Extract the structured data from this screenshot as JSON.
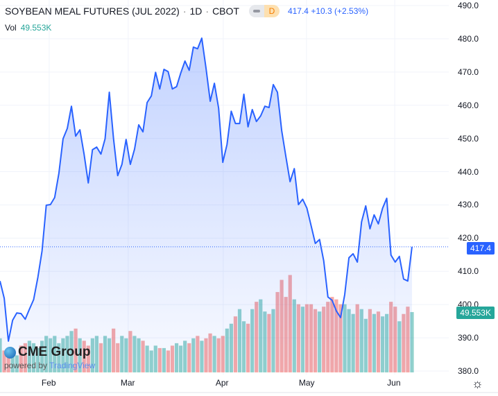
{
  "header": {
    "title": "SOYBEAN MEAL FUTURES (JUL 2022)",
    "interval": "1D",
    "exchange": "CBOT",
    "separator": "·",
    "badge_label": "D",
    "last": "417.4",
    "change": "+10.3",
    "change_pct": "(+2.53%)"
  },
  "volume": {
    "label": "Vol",
    "value": "49.553K"
  },
  "logo": {
    "brand": "CME Group",
    "powered_by": "powered by",
    "provider": "TradingView"
  },
  "colors": {
    "line": "#2962ff",
    "up": "#26a69a",
    "down": "#ef5350"
  },
  "chart_data": {
    "type": "line",
    "title": "SOYBEAN MEAL FUTURES (JUL 2022) · 1D · CBOT",
    "ylim": [
      380,
      490
    ],
    "yticks": [
      "490.0",
      "480.0",
      "470.0",
      "460.0",
      "450.0",
      "440.0",
      "430.0",
      "420.0",
      "410.0",
      "400.0",
      "390.0",
      "380.0"
    ],
    "ytick_values": [
      490,
      480,
      470,
      460,
      450,
      440,
      430,
      420,
      410,
      400,
      390,
      380
    ],
    "xticks": [
      {
        "label": "Feb",
        "index": 11.7
      },
      {
        "label": "Mar",
        "index": 30.5
      },
      {
        "label": "Apr",
        "index": 53.1
      },
      {
        "label": "May",
        "index": 72.9
      },
      {
        "label": "Jun",
        "index": 93.9
      }
    ],
    "last_price_label": "417.4",
    "last_volume_label": "49.553K",
    "prices": [
      407.1,
      401.9,
      389,
      395.3,
      397.5,
      397.3,
      395.6,
      398.6,
      401.5,
      408.2,
      416.1,
      429.9,
      430.1,
      432.2,
      439.5,
      449.9,
      453,
      459.7,
      450.7,
      452.6,
      445.3,
      436.6,
      446.6,
      447.4,
      445.3,
      449.9,
      463.9,
      449.9,
      438.8,
      442.2,
      449.7,
      442.2,
      446.8,
      454.1,
      452,
      460.8,
      462.8,
      469.9,
      464.9,
      470.8,
      470.1,
      464.9,
      465.6,
      469.7,
      473.3,
      470.5,
      477.5,
      477,
      480.2,
      471.2,
      461.2,
      466.6,
      459.1,
      442.8,
      448.2,
      458.2,
      454.5,
      454.5,
      463.3,
      453.5,
      458.7,
      455.1,
      456.8,
      459.7,
      459.3,
      466.2,
      463.9,
      452.4,
      444.5,
      437,
      440.9,
      430.1,
      431.7,
      429,
      423.8,
      418.4,
      419.6,
      413.2,
      402.3,
      401.3,
      398.1,
      396.1,
      403,
      414.1,
      415.3,
      412.8,
      424.9,
      429.7,
      422.8,
      427,
      424.3,
      429,
      432,
      414.9,
      412.8,
      414.5,
      407.7,
      407.1,
      417.4
    ],
    "volumes_k": [
      28,
      18,
      15,
      14,
      14,
      22,
      24,
      26,
      24,
      20,
      26,
      30,
      28,
      30,
      24,
      28,
      30,
      34,
      36,
      28,
      26,
      22,
      28,
      30,
      24,
      30,
      28,
      36,
      24,
      30,
      28,
      34,
      30,
      28,
      26,
      22,
      18,
      22,
      20,
      20,
      18,
      22,
      24,
      22,
      26,
      24,
      28,
      30,
      26,
      28,
      32,
      30,
      28,
      30,
      36,
      40,
      46,
      52,
      42,
      40,
      52,
      58,
      60,
      50,
      48,
      52,
      66,
      76,
      62,
      80,
      60,
      56,
      54,
      56,
      56,
      52,
      50,
      54,
      58,
      62,
      60,
      56,
      56,
      52,
      48,
      56,
      52,
      44,
      52,
      48,
      50,
      46,
      48,
      58,
      54,
      42,
      48,
      54,
      49.553
    ]
  }
}
